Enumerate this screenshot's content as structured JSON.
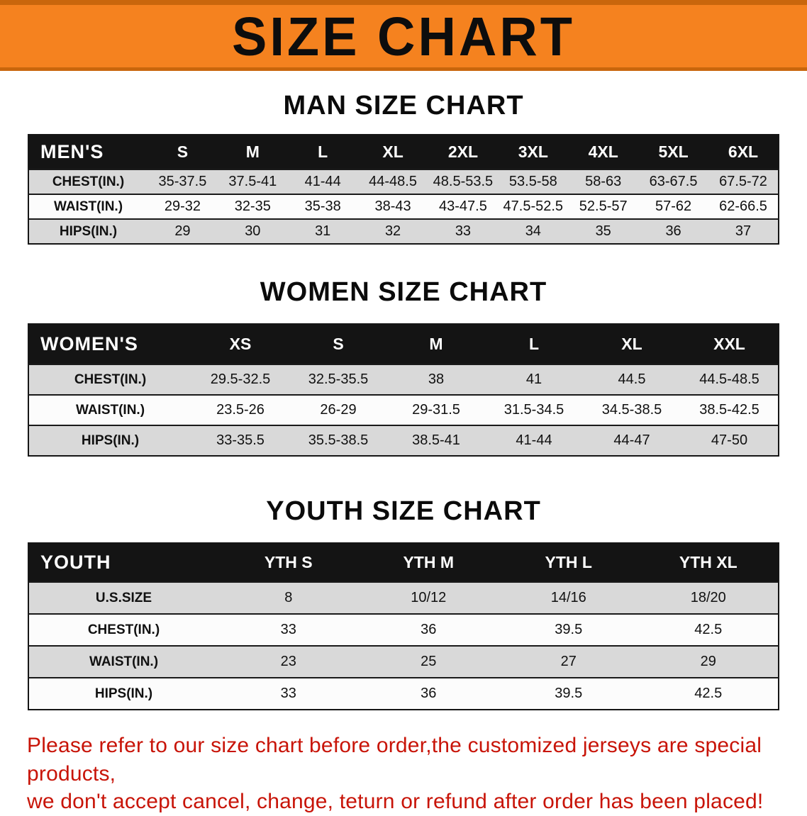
{
  "banner": {
    "title": "SIZE CHART",
    "bg_color": "#f5821f",
    "title_color": "#0d0d0d"
  },
  "sections": [
    {
      "id": "men",
      "heading": "MAN SIZE CHART",
      "table": {
        "header": [
          "MEN'S",
          "S",
          "M",
          "L",
          "XL",
          "2XL",
          "3XL",
          "4XL",
          "5XL",
          "6XL"
        ],
        "rows": [
          [
            "CHEST(IN.)",
            "35-37.5",
            "37.5-41",
            "41-44",
            "44-48.5",
            "48.5-53.5",
            "53.5-58",
            "58-63",
            "63-67.5",
            "67.5-72"
          ],
          [
            "WAIST(IN.)",
            "29-32",
            "32-35",
            "35-38",
            "38-43",
            "43-47.5",
            "47.5-52.5",
            "52.5-57",
            "57-62",
            "62-66.5"
          ],
          [
            "HIPS(IN.)",
            "29",
            "30",
            "31",
            "32",
            "33",
            "34",
            "35",
            "36",
            "37"
          ]
        ]
      }
    },
    {
      "id": "women",
      "heading": "WOMEN SIZE CHART",
      "table": {
        "header": [
          "WOMEN'S",
          "XS",
          "S",
          "M",
          "L",
          "XL",
          "XXL"
        ],
        "rows": [
          [
            "CHEST(IN.)",
            "29.5-32.5",
            "32.5-35.5",
            "38",
            "41",
            "44.5",
            "44.5-48.5"
          ],
          [
            "WAIST(IN.)",
            "23.5-26",
            "26-29",
            "29-31.5",
            "31.5-34.5",
            "34.5-38.5",
            "38.5-42.5"
          ],
          [
            "HIPS(IN.)",
            "33-35.5",
            "35.5-38.5",
            "38.5-41",
            "41-44",
            "44-47",
            "47-50"
          ]
        ]
      }
    },
    {
      "id": "youth",
      "heading": "YOUTH SIZE CHART",
      "table": {
        "header": [
          "YOUTH",
          "YTH S",
          "YTH M",
          "YTH L",
          "YTH XL"
        ],
        "rows": [
          [
            "U.S.SIZE",
            "8",
            "10/12",
            "14/16",
            "18/20"
          ],
          [
            "CHEST(IN.)",
            "33",
            "36",
            "39.5",
            "42.5"
          ],
          [
            "WAIST(IN.)",
            "23",
            "25",
            "27",
            "29"
          ],
          [
            "HIPS(IN.)",
            "33",
            "36",
            "39.5",
            "42.5"
          ]
        ]
      }
    }
  ],
  "footer_note": {
    "line1": "Please refer to our size chart before order,the customized jerseys are special products,",
    "line2": "we don't accept cancel, change, teturn or refund after order has been placed!",
    "color": "#c81408"
  }
}
